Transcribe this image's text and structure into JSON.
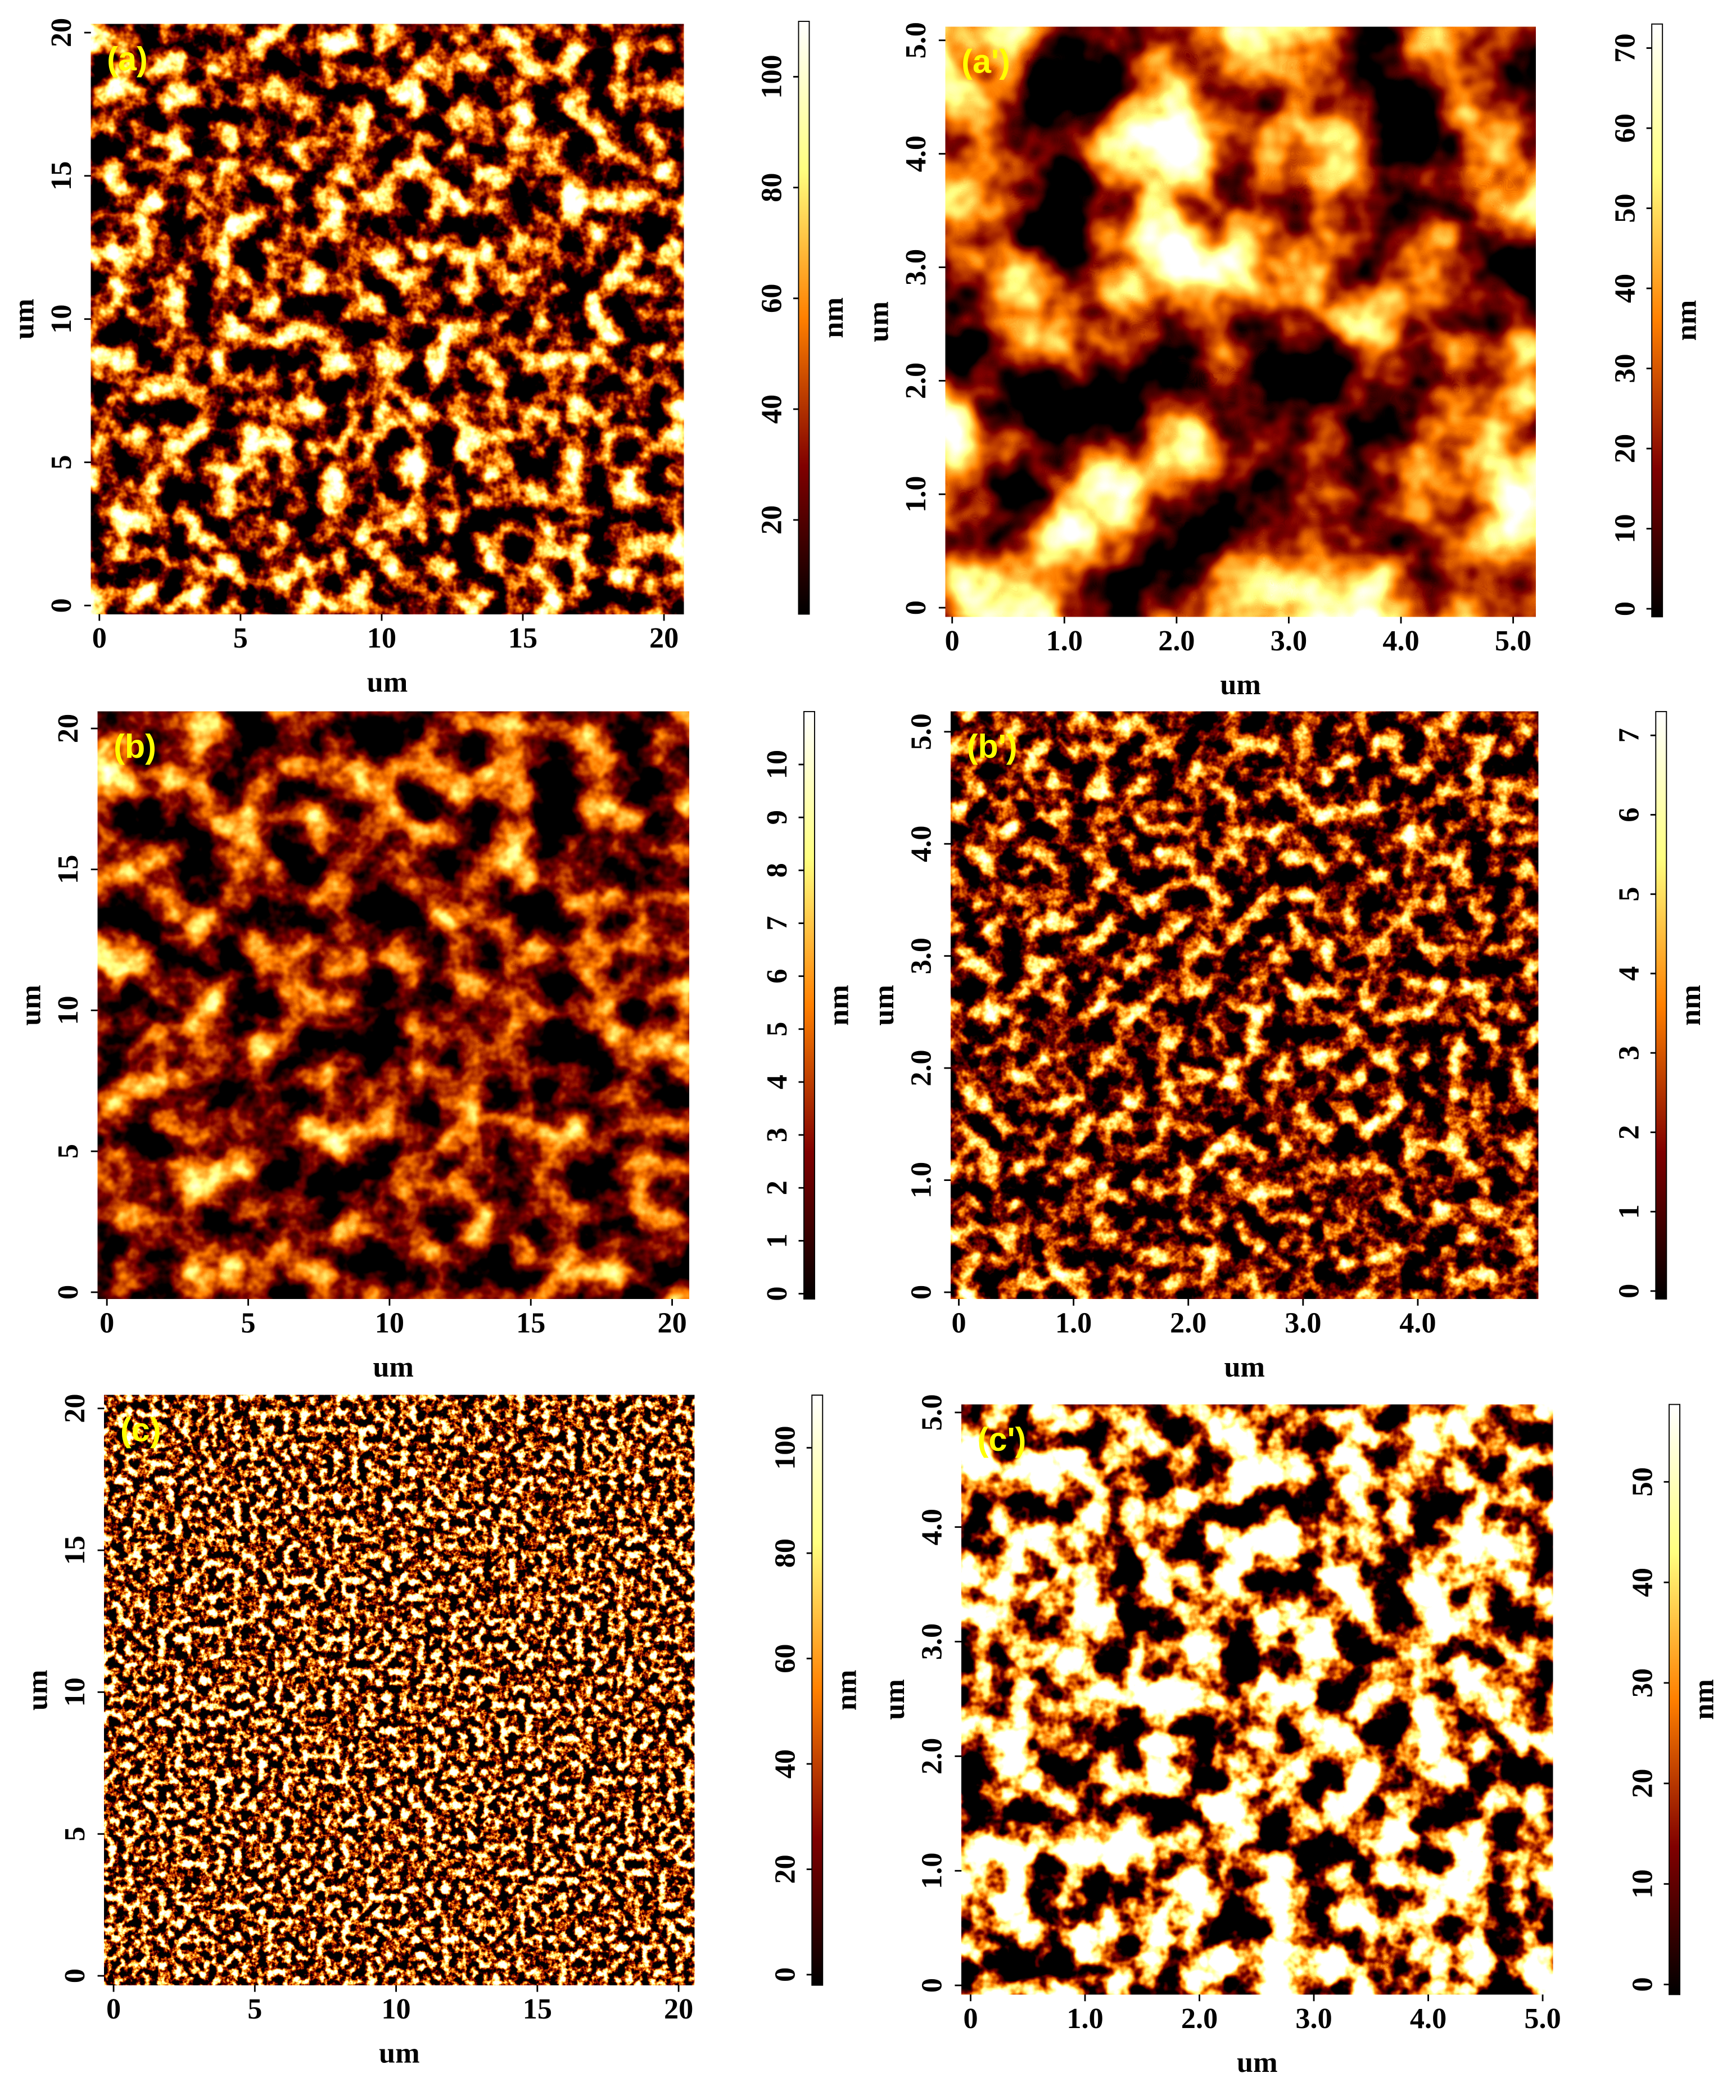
{
  "chart_data": [
    {
      "type": "image",
      "panel_label": "(a)",
      "xlabel": "um",
      "ylabel": "um",
      "xlim": [
        -0.3,
        20.7
      ],
      "ylim": [
        -0.3,
        20.3
      ],
      "xticks": [
        0,
        5,
        10,
        15,
        20
      ],
      "yticks": [
        0,
        5,
        10,
        15,
        20
      ],
      "colorbar": {
        "label": "nm",
        "lim": [
          3,
          110
        ],
        "ticks": [
          20,
          40,
          60,
          80,
          100
        ]
      }
    },
    {
      "type": "image",
      "panel_label": "(a')",
      "xlabel": "um",
      "ylabel": "um",
      "xlim": [
        -0.06,
        5.2
      ],
      "ylim": [
        -0.08,
        5.12
      ],
      "xticks": [
        0,
        {
          "value": 1,
          "label": "1.0"
        },
        {
          "value": 2,
          "label": "2.0"
        },
        {
          "value": 3,
          "label": "3.0"
        },
        {
          "value": 4,
          "label": "4.0"
        },
        {
          "value": 5,
          "label": "5.0"
        }
      ],
      "yticks": [
        0,
        {
          "value": 1,
          "label": "1.0"
        },
        {
          "value": 2,
          "label": "2.0"
        },
        {
          "value": 3,
          "label": "3.0"
        },
        {
          "value": 4,
          "label": "4.0"
        },
        {
          "value": 5,
          "label": "5.0"
        }
      ],
      "colorbar": {
        "label": "nm",
        "lim": [
          -1,
          73
        ],
        "ticks": [
          0,
          10,
          20,
          30,
          40,
          50,
          60,
          70
        ]
      }
    },
    {
      "type": "image",
      "panel_label": "(b)",
      "xlabel": "um",
      "ylabel": "um",
      "xlim": [
        -0.33,
        20.6
      ],
      "ylim": [
        -0.24,
        20.6
      ],
      "xticks": [
        0,
        5,
        10,
        15,
        20
      ],
      "yticks": [
        0,
        5,
        10,
        15,
        20
      ],
      "colorbar": {
        "label": "nm",
        "lim": [
          -0.1,
          11
        ],
        "ticks": [
          0,
          1,
          2,
          3,
          4,
          5,
          6,
          7,
          8,
          9,
          10
        ]
      }
    },
    {
      "type": "image",
      "panel_label": "(b')",
      "xlabel": "um",
      "ylabel": "um",
      "xlim": [
        -0.07,
        5.05
      ],
      "ylim": [
        -0.06,
        5.18
      ],
      "xticks": [
        0,
        {
          "value": 1,
          "label": "1.0"
        },
        {
          "value": 2,
          "label": "2.0"
        },
        {
          "value": 3,
          "label": "3.0"
        },
        {
          "value": 4,
          "label": "4.0"
        }
      ],
      "yticks": [
        0,
        {
          "value": 1,
          "label": "1.0"
        },
        {
          "value": 2,
          "label": "2.0"
        },
        {
          "value": 3,
          "label": "3.0"
        },
        {
          "value": 4,
          "label": "4.0"
        },
        {
          "value": 5,
          "label": "5.0"
        }
      ],
      "colorbar": {
        "label": "nm",
        "lim": [
          -0.1,
          7.3
        ],
        "ticks": [
          0,
          1,
          2,
          3,
          4,
          5,
          6,
          7
        ]
      }
    },
    {
      "type": "image",
      "panel_label": "(c)",
      "xlabel": "um",
      "ylabel": "um",
      "xlim": [
        -0.33,
        20.56
      ],
      "ylim": [
        -0.33,
        20.47
      ],
      "xticks": [
        0,
        5,
        10,
        15,
        20
      ],
      "yticks": [
        0,
        5,
        10,
        15,
        20
      ],
      "colorbar": {
        "label": "nm",
        "lim": [
          -2,
          110
        ],
        "ticks": [
          0,
          20,
          40,
          60,
          80,
          100
        ]
      }
    },
    {
      "type": "image",
      "panel_label": "(c')",
      "xlabel": "um",
      "ylabel": "um",
      "xlim": [
        -0.08,
        5.09
      ],
      "ylim": [
        -0.08,
        5.07
      ],
      "xticks": [
        0,
        {
          "value": 1,
          "label": "1.0"
        },
        {
          "value": 2,
          "label": "2.0"
        },
        {
          "value": 3,
          "label": "3.0"
        },
        {
          "value": 4,
          "label": "4.0"
        },
        {
          "value": 5,
          "label": "5.0"
        }
      ],
      "yticks": [
        0,
        {
          "value": 1,
          "label": "1.0"
        },
        {
          "value": 2,
          "label": "2.0"
        },
        {
          "value": 3,
          "label": "3.0"
        },
        {
          "value": 4,
          "label": "4.0"
        },
        {
          "value": 5,
          "label": "5.0"
        }
      ],
      "colorbar": {
        "label": "nm",
        "lim": [
          -1,
          57.7
        ],
        "ticks": [
          0,
          10,
          20,
          30,
          40,
          50
        ]
      }
    }
  ]
}
